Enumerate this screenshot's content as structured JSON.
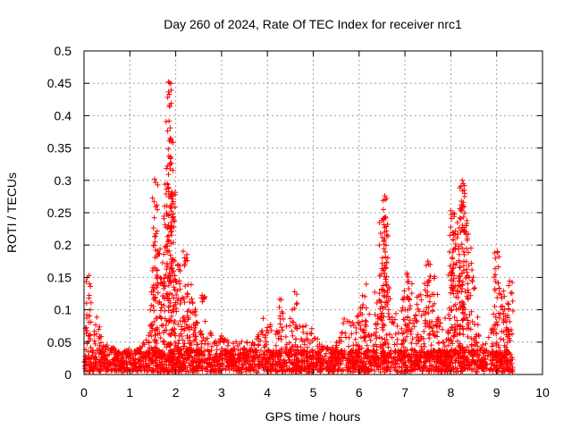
{
  "chart_data": {
    "type": "scatter",
    "title": "Day 260 of 2024, Rate Of TEC Index for receiver nrc1",
    "xlabel": "GPS time / hours",
    "ylabel": "ROTI / TECUs",
    "xlim": [
      0,
      10
    ],
    "ylim": [
      0,
      0.5
    ],
    "xticks": [
      "0",
      "1",
      "2",
      "3",
      "4",
      "5",
      "6",
      "7",
      "8",
      "9",
      "10"
    ],
    "yticks": [
      "0",
      "0.05",
      "0.1",
      "0.15",
      "0.2",
      "0.25",
      "0.3",
      "0.35",
      "0.4",
      "0.45",
      "0.5"
    ],
    "grid": true,
    "marker": "+",
    "color": "#ff0000",
    "x_range_of_data": [
      0,
      9.35
    ],
    "envelope": [
      [
        0.0,
        0.055
      ],
      [
        0.1,
        0.14
      ],
      [
        0.2,
        0.06
      ],
      [
        0.3,
        0.1
      ],
      [
        0.4,
        0.05
      ],
      [
        0.6,
        0.045
      ],
      [
        0.8,
        0.035
      ],
      [
        1.0,
        0.04
      ],
      [
        1.2,
        0.04
      ],
      [
        1.4,
        0.06
      ],
      [
        1.5,
        0.15
      ],
      [
        1.55,
        0.3
      ],
      [
        1.6,
        0.21
      ],
      [
        1.7,
        0.18
      ],
      [
        1.8,
        0.29
      ],
      [
        1.85,
        0.455
      ],
      [
        1.9,
        0.365
      ],
      [
        1.95,
        0.28
      ],
      [
        2.0,
        0.14
      ],
      [
        2.1,
        0.16
      ],
      [
        2.2,
        0.18
      ],
      [
        2.3,
        0.13
      ],
      [
        2.4,
        0.11
      ],
      [
        2.5,
        0.09
      ],
      [
        2.6,
        0.11
      ],
      [
        2.8,
        0.06
      ],
      [
        3.0,
        0.06
      ],
      [
        3.2,
        0.055
      ],
      [
        3.4,
        0.055
      ],
      [
        3.6,
        0.05
      ],
      [
        3.8,
        0.06
      ],
      [
        3.9,
        0.09
      ],
      [
        4.0,
        0.08
      ],
      [
        4.2,
        0.08
      ],
      [
        4.3,
        0.105
      ],
      [
        4.5,
        0.1
      ],
      [
        4.6,
        0.12
      ],
      [
        4.7,
        0.08
      ],
      [
        4.9,
        0.075
      ],
      [
        5.0,
        0.07
      ],
      [
        5.2,
        0.045
      ],
      [
        5.4,
        0.045
      ],
      [
        5.6,
        0.06
      ],
      [
        5.7,
        0.1
      ],
      [
        5.8,
        0.085
      ],
      [
        6.0,
        0.095
      ],
      [
        6.1,
        0.13
      ],
      [
        6.2,
        0.1
      ],
      [
        6.3,
        0.085
      ],
      [
        6.4,
        0.14
      ],
      [
        6.5,
        0.24
      ],
      [
        6.55,
        0.275
      ],
      [
        6.6,
        0.22
      ],
      [
        6.7,
        0.1
      ],
      [
        6.8,
        0.1
      ],
      [
        6.9,
        0.09
      ],
      [
        7.0,
        0.15
      ],
      [
        7.1,
        0.145
      ],
      [
        7.2,
        0.1
      ],
      [
        7.3,
        0.11
      ],
      [
        7.4,
        0.14
      ],
      [
        7.5,
        0.175
      ],
      [
        7.6,
        0.14
      ],
      [
        7.7,
        0.11
      ],
      [
        7.8,
        0.08
      ],
      [
        7.9,
        0.1
      ],
      [
        8.0,
        0.22
      ],
      [
        8.05,
        0.25
      ],
      [
        8.1,
        0.21
      ],
      [
        8.2,
        0.23
      ],
      [
        8.25,
        0.3
      ],
      [
        8.3,
        0.28
      ],
      [
        8.4,
        0.21
      ],
      [
        8.5,
        0.15
      ],
      [
        8.6,
        0.08
      ],
      [
        8.7,
        0.06
      ],
      [
        8.8,
        0.05
      ],
      [
        8.9,
        0.08
      ],
      [
        9.0,
        0.19
      ],
      [
        9.1,
        0.12
      ],
      [
        9.2,
        0.12
      ],
      [
        9.3,
        0.135
      ],
      [
        9.35,
        0.06
      ]
    ],
    "highlight_points": [
      [
        1.84,
        0.452
      ],
      [
        1.86,
        0.433
      ],
      [
        1.86,
        0.416
      ],
      [
        1.87,
        0.414
      ],
      [
        1.88,
        0.381
      ],
      [
        1.88,
        0.365
      ],
      [
        1.9,
        0.362
      ],
      [
        1.84,
        0.289
      ],
      [
        1.9,
        0.278
      ],
      [
        1.54,
        0.302
      ],
      [
        1.56,
        0.297
      ],
      [
        1.53,
        0.267
      ],
      [
        1.56,
        0.214
      ],
      [
        1.82,
        0.213
      ],
      [
        1.83,
        0.205
      ],
      [
        1.85,
        0.208
      ],
      [
        6.56,
        0.276
      ],
      [
        6.57,
        0.27
      ],
      [
        6.53,
        0.255
      ],
      [
        6.58,
        0.242
      ],
      [
        6.5,
        0.238
      ],
      [
        6.47,
        0.218
      ],
      [
        6.62,
        0.232
      ],
      [
        6.44,
        0.2
      ],
      [
        8.25,
        0.3
      ],
      [
        8.27,
        0.295
      ],
      [
        8.29,
        0.285
      ],
      [
        8.3,
        0.275
      ],
      [
        8.23,
        0.268
      ],
      [
        8.05,
        0.25
      ],
      [
        8.08,
        0.248
      ],
      [
        8.34,
        0.23
      ],
      [
        8.32,
        0.22
      ],
      [
        8.36,
        0.21
      ],
      [
        7.98,
        0.215
      ],
      [
        7.5,
        0.175
      ],
      [
        7.55,
        0.17
      ],
      [
        9.02,
        0.19
      ],
      [
        9.05,
        0.182
      ],
      [
        2.23,
        0.18
      ],
      [
        2.21,
        0.175
      ],
      [
        2.1,
        0.16
      ],
      [
        0.12,
        0.14
      ],
      [
        0.14,
        0.136
      ]
    ]
  }
}
